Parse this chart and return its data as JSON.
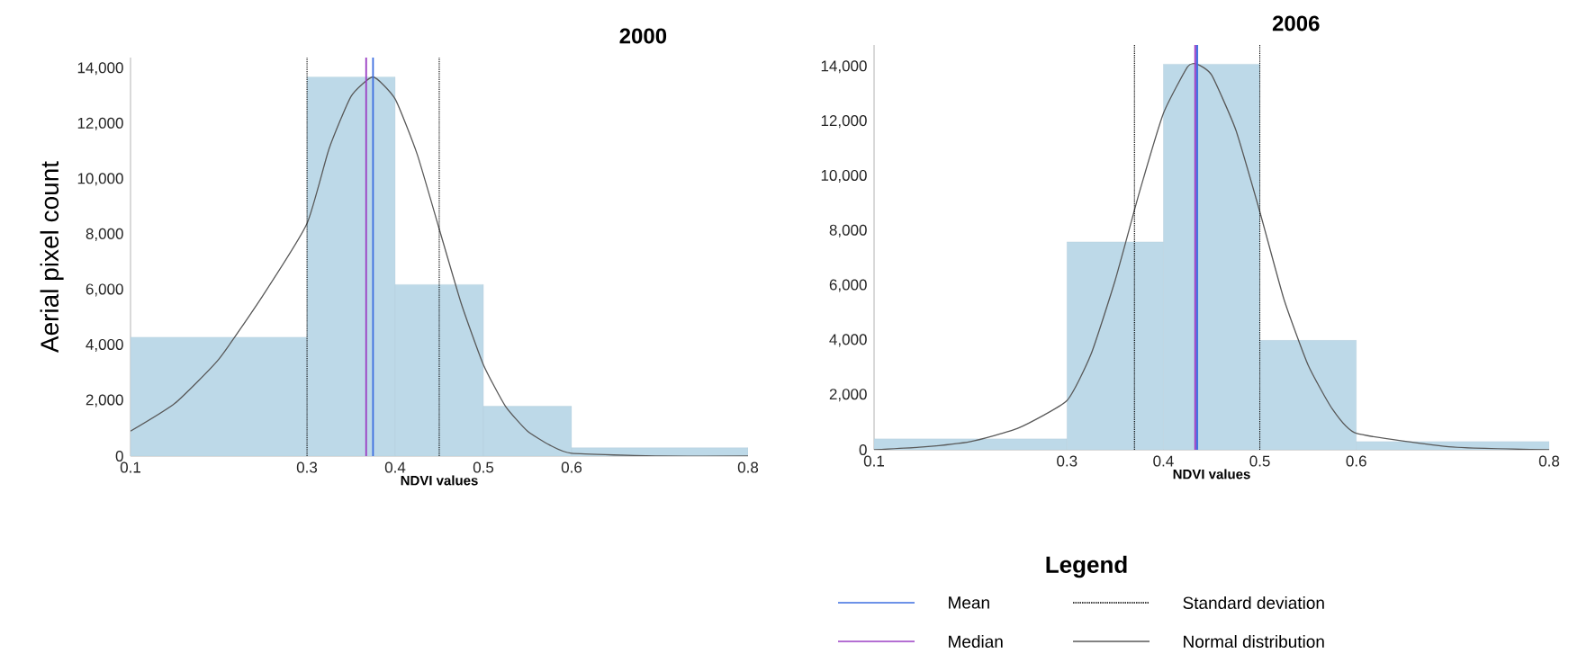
{
  "chart_data": [
    {
      "type": "histogram",
      "title": "2000",
      "xlabel": "NDVI values",
      "ylabel": "Aerial pixel count",
      "bins": [
        0.1,
        0.3,
        0.4,
        0.5,
        0.6,
        0.8
      ],
      "values": [
        4300,
        13700,
        6200,
        1800,
        300
      ],
      "color": "#bdd9e8",
      "xlim": [
        0.1,
        0.8
      ],
      "xticks": [
        0.1,
        0.3,
        0.4,
        0.5,
        0.6,
        0.8
      ],
      "ylim": [
        0,
        14400
      ],
      "yticks": [
        0,
        {
          "value": 2000,
          "label": "2,000"
        },
        {
          "value": 4000,
          "label": "4,000"
        },
        {
          "value": 6000,
          "label": "6,000"
        },
        {
          "value": 8000,
          "label": "8,000"
        },
        {
          "value": 10000,
          "label": "10,000"
        },
        {
          "value": 12000,
          "label": "12,000"
        },
        {
          "value": 14000,
          "label": "14,000"
        }
      ],
      "series": [
        {
          "type": "line",
          "color": "#595959",
          "x": [
            0.1,
            0.15,
            0.2,
            0.25,
            0.3,
            0.325,
            0.35,
            0.375,
            0.4,
            0.425,
            0.45,
            0.475,
            0.5,
            0.525,
            0.55,
            0.575,
            0.6,
            0.7,
            0.8
          ],
          "values": [
            900,
            1900,
            3500,
            5800,
            8400,
            11100,
            13000,
            13700,
            12900,
            10900,
            8200,
            5500,
            3300,
            1800,
            900,
            400,
            100,
            0,
            0
          ]
        }
      ],
      "ref_lines": [
        {
          "axis": "x",
          "value": 0.367,
          "color": "#9b3fc4"
        },
        {
          "axis": "x",
          "value": 0.375,
          "color": "#3d6ee0"
        },
        {
          "axis": "x",
          "value": 0.3,
          "color": "#000000",
          "line_style": "dotted"
        },
        {
          "axis": "x",
          "value": 0.45,
          "color": "#000000",
          "line_style": "dotted"
        }
      ]
    },
    {
      "type": "histogram",
      "title": "2006",
      "xlabel": "NDVI values",
      "legend": "bottom",
      "legend_title": "Legend",
      "bins": [
        0.1,
        0.3,
        0.4,
        0.5,
        0.6,
        0.8
      ],
      "values": [
        400,
        7600,
        14100,
        4000,
        300
      ],
      "color": "#bdd9e8",
      "xlim": [
        0.1,
        0.8
      ],
      "xticks": [
        0.1,
        0.3,
        0.4,
        0.5,
        0.6,
        0.8
      ],
      "ylim": [
        0,
        14800
      ],
      "yticks": [
        0,
        {
          "value": 2000,
          "label": "2,000"
        },
        {
          "value": 4000,
          "label": "4,000"
        },
        {
          "value": 6000,
          "label": "6,000"
        },
        {
          "value": 8000,
          "label": "8,000"
        },
        {
          "value": 10000,
          "label": "10,000"
        },
        {
          "value": 12000,
          "label": "12,000"
        },
        {
          "value": 14000,
          "label": "14,000"
        }
      ],
      "series": [
        {
          "type": "line",
          "name": "Normal distribution",
          "color": "#595959",
          "x": [
            0.1,
            0.15,
            0.2,
            0.25,
            0.3,
            0.325,
            0.35,
            0.375,
            0.4,
            0.425,
            0.435,
            0.45,
            0.475,
            0.5,
            0.525,
            0.55,
            0.575,
            0.6,
            0.7,
            0.8
          ],
          "values": [
            0,
            100,
            300,
            800,
            1800,
            3500,
            6200,
            9400,
            12300,
            14000,
            14100,
            13700,
            11700,
            8700,
            5500,
            3100,
            1500,
            600,
            100,
            0
          ]
        }
      ],
      "ref_lines": [
        {
          "axis": "x",
          "value": 0.435,
          "color": "#3d6ee0",
          "label": "Mean"
        },
        {
          "axis": "x",
          "value": 0.433,
          "color": "#9b3fc4",
          "label": "Median"
        },
        {
          "axis": "x",
          "value": 0.37,
          "color": "#000000",
          "line_style": "dotted",
          "label": "Standard deviation"
        },
        {
          "axis": "x",
          "value": 0.5,
          "color": "#000000",
          "line_style": "dotted"
        }
      ]
    }
  ]
}
